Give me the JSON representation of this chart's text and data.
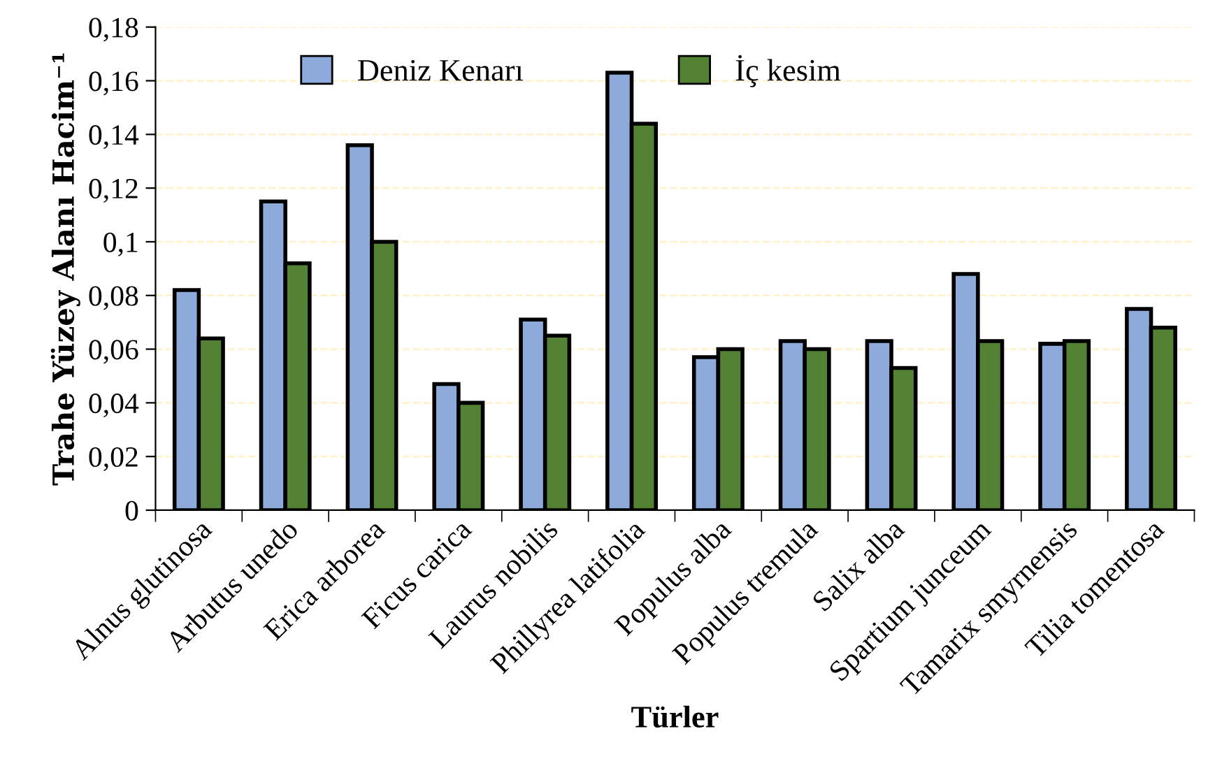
{
  "chart_data": {
    "type": "bar",
    "xlabel": "Türler",
    "ylabel": "Trahe Yüzey Alanı Hacim⁻¹",
    "categories": [
      "Alnus glutinosa",
      "Arbutus unedo",
      "Erica arborea",
      "Ficus carica",
      "Laurus nobilis",
      "Phillyrea latifolia",
      "Populus alba",
      "Populus tremula",
      "Salix alba",
      "Spartium junceum",
      "Tamarix smyrnensis",
      "Tilia tomentosa"
    ],
    "series": [
      {
        "name": "Deniz Kenarı",
        "color": "#8eaadb",
        "values": [
          0.082,
          0.115,
          0.136,
          0.047,
          0.071,
          0.163,
          0.057,
          0.063,
          0.063,
          0.088,
          0.062,
          0.075
        ]
      },
      {
        "name": "İç kesim",
        "color": "#548235",
        "values": [
          0.064,
          0.092,
          0.1,
          0.04,
          0.065,
          0.144,
          0.06,
          0.06,
          0.053,
          0.063,
          0.063,
          0.068
        ]
      }
    ],
    "ylim": [
      0,
      0.18
    ],
    "yticks": [
      {
        "value": 0,
        "label": "0"
      },
      {
        "value": 0.02,
        "label": "0,02"
      },
      {
        "value": 0.04,
        "label": "0,04"
      },
      {
        "value": 0.06,
        "label": "0,06"
      },
      {
        "value": 0.08,
        "label": "0,08"
      },
      {
        "value": 0.1,
        "label": "0,1"
      },
      {
        "value": 0.12,
        "label": "0,12"
      },
      {
        "value": 0.14,
        "label": "0,14"
      },
      {
        "value": 0.16,
        "label": "0,16"
      },
      {
        "value": 0.18,
        "label": "0,18"
      }
    ],
    "grid": "y",
    "legend": "top"
  }
}
